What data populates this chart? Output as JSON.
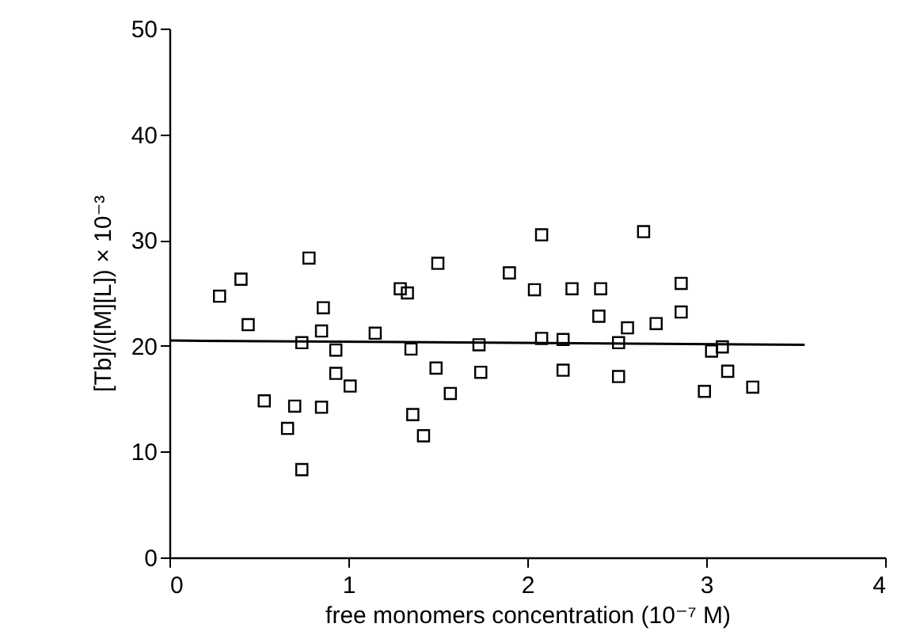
{
  "chart_data": {
    "type": "scatter",
    "xlabel": "free monomers concentration (10⁻⁷ M)",
    "ylabel": "[Tb]/([M][L]) × 10⁻³",
    "xlim": [
      0,
      4
    ],
    "xticks": [
      0,
      1,
      2,
      3,
      4
    ],
    "ylim": [
      0,
      50
    ],
    "yticks": [
      0,
      10,
      20,
      30,
      40,
      50
    ],
    "grid": false,
    "series": [
      {
        "marker": "square",
        "color": "#000000",
        "x": [
          0.78,
          1.5,
          0.4,
          0.28,
          1.29,
          1.33,
          0.86,
          0.44,
          0.85,
          0.74,
          1.15,
          0.93,
          1.35,
          0.93,
          1.01,
          1.49,
          1.57,
          0.53,
          0.7,
          0.85,
          0.66,
          1.36,
          1.42,
          0.74,
          2.08,
          2.65,
          1.9,
          2.04,
          2.25,
          2.41,
          2.86,
          2.4,
          2.56,
          2.72,
          2.86,
          1.73,
          2.08,
          2.2,
          2.51,
          3.03,
          3.09,
          1.74,
          2.2,
          2.51,
          3.12,
          2.99,
          3.26
        ],
        "values": [
          28.3,
          27.8,
          26.3,
          24.7,
          25.4,
          25.0,
          23.6,
          22.0,
          21.4,
          20.3,
          21.2,
          19.6,
          19.7,
          17.4,
          16.2,
          17.9,
          15.5,
          14.8,
          14.3,
          14.2,
          12.2,
          13.5,
          11.5,
          8.3,
          30.5,
          30.8,
          26.9,
          25.3,
          25.4,
          25.4,
          25.9,
          22.8,
          21.7,
          22.1,
          23.2,
          20.1,
          20.7,
          20.6,
          20.3,
          19.5,
          19.9,
          17.5,
          17.7,
          17.1,
          17.6,
          15.7,
          16.1
        ]
      },
      {
        "type": "line",
        "color": "#000000",
        "x": [
          0,
          3.55
        ],
        "values": [
          20.5,
          20.1
        ]
      }
    ]
  }
}
